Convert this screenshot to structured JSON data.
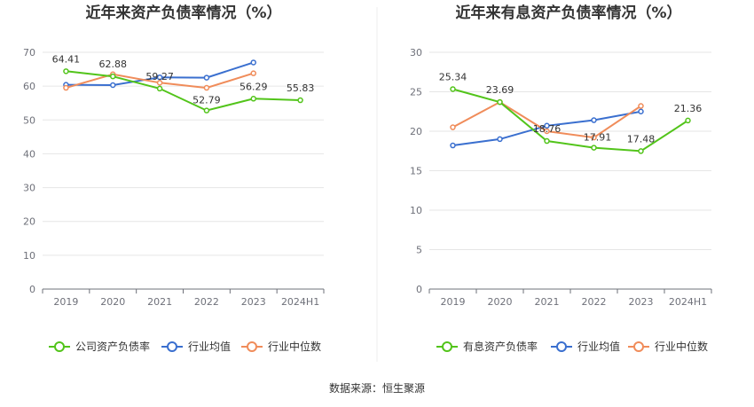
{
  "source_text": "数据来源：恒生聚源",
  "chart_data": [
    {
      "type": "line",
      "title": "近年来资产负债率情况（%）",
      "categories": [
        "2019",
        "2020",
        "2021",
        "2022",
        "2023",
        "2024H1"
      ],
      "ylim": [
        0,
        70
      ],
      "yticks": [
        0,
        10,
        20,
        30,
        40,
        50,
        60,
        70
      ],
      "grid": true,
      "legend": "bottom",
      "series": [
        {
          "name": "公司资产负债率",
          "color": "#52c41a",
          "values": [
            64.41,
            62.88,
            59.27,
            52.79,
            56.29,
            55.83
          ],
          "labels": [
            "64.41",
            "62.88",
            "59.27",
            "52.79",
            "56.29",
            "55.83"
          ]
        },
        {
          "name": "行业均值",
          "color": "#3a6fcf",
          "values": [
            60.4,
            60.3,
            62.6,
            62.5,
            67.0,
            null
          ]
        },
        {
          "name": "行业中位数",
          "color": "#f08c5a",
          "values": [
            59.5,
            63.5,
            61.0,
            59.5,
            63.8,
            null
          ]
        }
      ]
    },
    {
      "type": "line",
      "title": "近年来有息资产负债率情况（%）",
      "categories": [
        "2019",
        "2020",
        "2021",
        "2022",
        "2023",
        "2024H1"
      ],
      "ylim": [
        0,
        30
      ],
      "yticks": [
        0,
        5,
        10,
        15,
        20,
        25,
        30
      ],
      "grid": true,
      "legend": "bottom",
      "series": [
        {
          "name": "有息资产负债率",
          "color": "#52c41a",
          "values": [
            25.34,
            23.69,
            18.76,
            17.91,
            17.48,
            21.36
          ],
          "labels": [
            "25.34",
            "23.69",
            "18.76",
            "17.91",
            "17.48",
            "21.36"
          ]
        },
        {
          "name": "行业均值",
          "color": "#3a6fcf",
          "values": [
            18.2,
            19.0,
            20.7,
            21.4,
            22.5,
            null
          ]
        },
        {
          "name": "行业中位数",
          "color": "#f08c5a",
          "values": [
            20.5,
            23.7,
            20.0,
            19.2,
            23.2,
            null
          ]
        }
      ]
    }
  ]
}
